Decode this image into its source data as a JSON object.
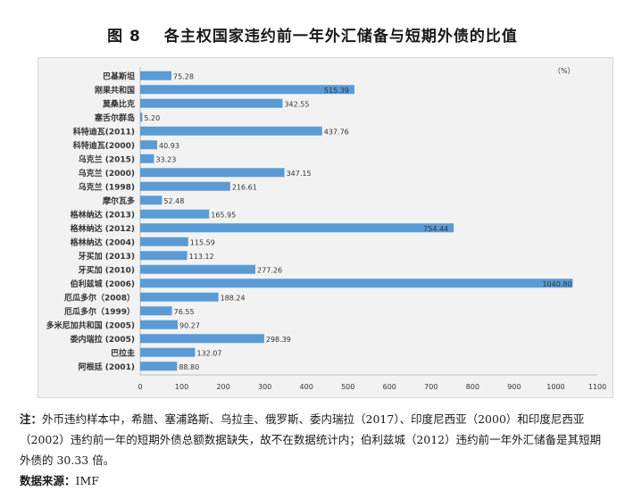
{
  "figure": {
    "number": "图 8",
    "title": "各主权国家违约前一年外汇储备与短期外债的比值"
  },
  "chart_data": {
    "type": "bar",
    "orientation": "horizontal",
    "unit_label": "（%）",
    "categories": [
      "巴基斯坦",
      "刚果共和国",
      "莫桑比克",
      "塞舌尔群岛",
      "科特迪瓦(2011)",
      "科特迪瓦(2000)",
      "乌克兰 (2015)",
      "乌克兰 (2000)",
      "乌克兰 (1998)",
      "摩尔瓦多",
      "格林纳达 (2013)",
      "格林纳达 (2012)",
      "格林纳达 (2004)",
      "牙买加 (2013)",
      "牙买加 (2010)",
      "伯利兹城 (2006)",
      "厄瓜多尔（2008）",
      "厄瓜多尔（1999）",
      "多米尼加共和国 (2005)",
      "委内瑞拉 (2005)",
      "巴拉圭",
      "阿根廷 (2001)"
    ],
    "values": [
      75.28,
      515.39,
      342.55,
      5.2,
      437.76,
      40.93,
      33.23,
      347.15,
      216.61,
      52.48,
      165.95,
      754.44,
      115.59,
      113.12,
      277.26,
      1040.8,
      188.24,
      76.55,
      90.27,
      298.39,
      132.07,
      88.8
    ],
    "value_labels": [
      "75.28",
      "515.39",
      "342.55",
      "5.20",
      "437.76",
      "40.93",
      "33.23",
      "347.15",
      "216.61",
      "52.48",
      "165.95",
      "754.44",
      "115.59",
      "113.12",
      "277.26",
      "1040.80",
      "188.24",
      "76.55",
      "90.27",
      "298.39",
      "132.07",
      "88.80"
    ],
    "x_ticks": [
      "0",
      "100",
      "200",
      "300",
      "400",
      "500",
      "600",
      "700",
      "800",
      "900",
      "1000",
      "1100"
    ],
    "xlim": [
      0,
      1100
    ],
    "bar_color": "#5b9bd5",
    "background_color": "#f2f2f2",
    "grid": false,
    "legend": false
  },
  "notes": {
    "note_label": "注：",
    "note_text": "外币违约样本中，希腊、塞浦路斯、乌拉圭、俄罗斯、委内瑞拉（2017）、印度尼西亚（2000）和印度尼西亚（2002）违约前一年的短期外债总额数据缺失，故不在数据统计内；伯利兹城（2012）违约前一年外汇储备是其短期外债的 30.33 倍。",
    "source_label": "数据来源：",
    "source_text": "IMF"
  }
}
